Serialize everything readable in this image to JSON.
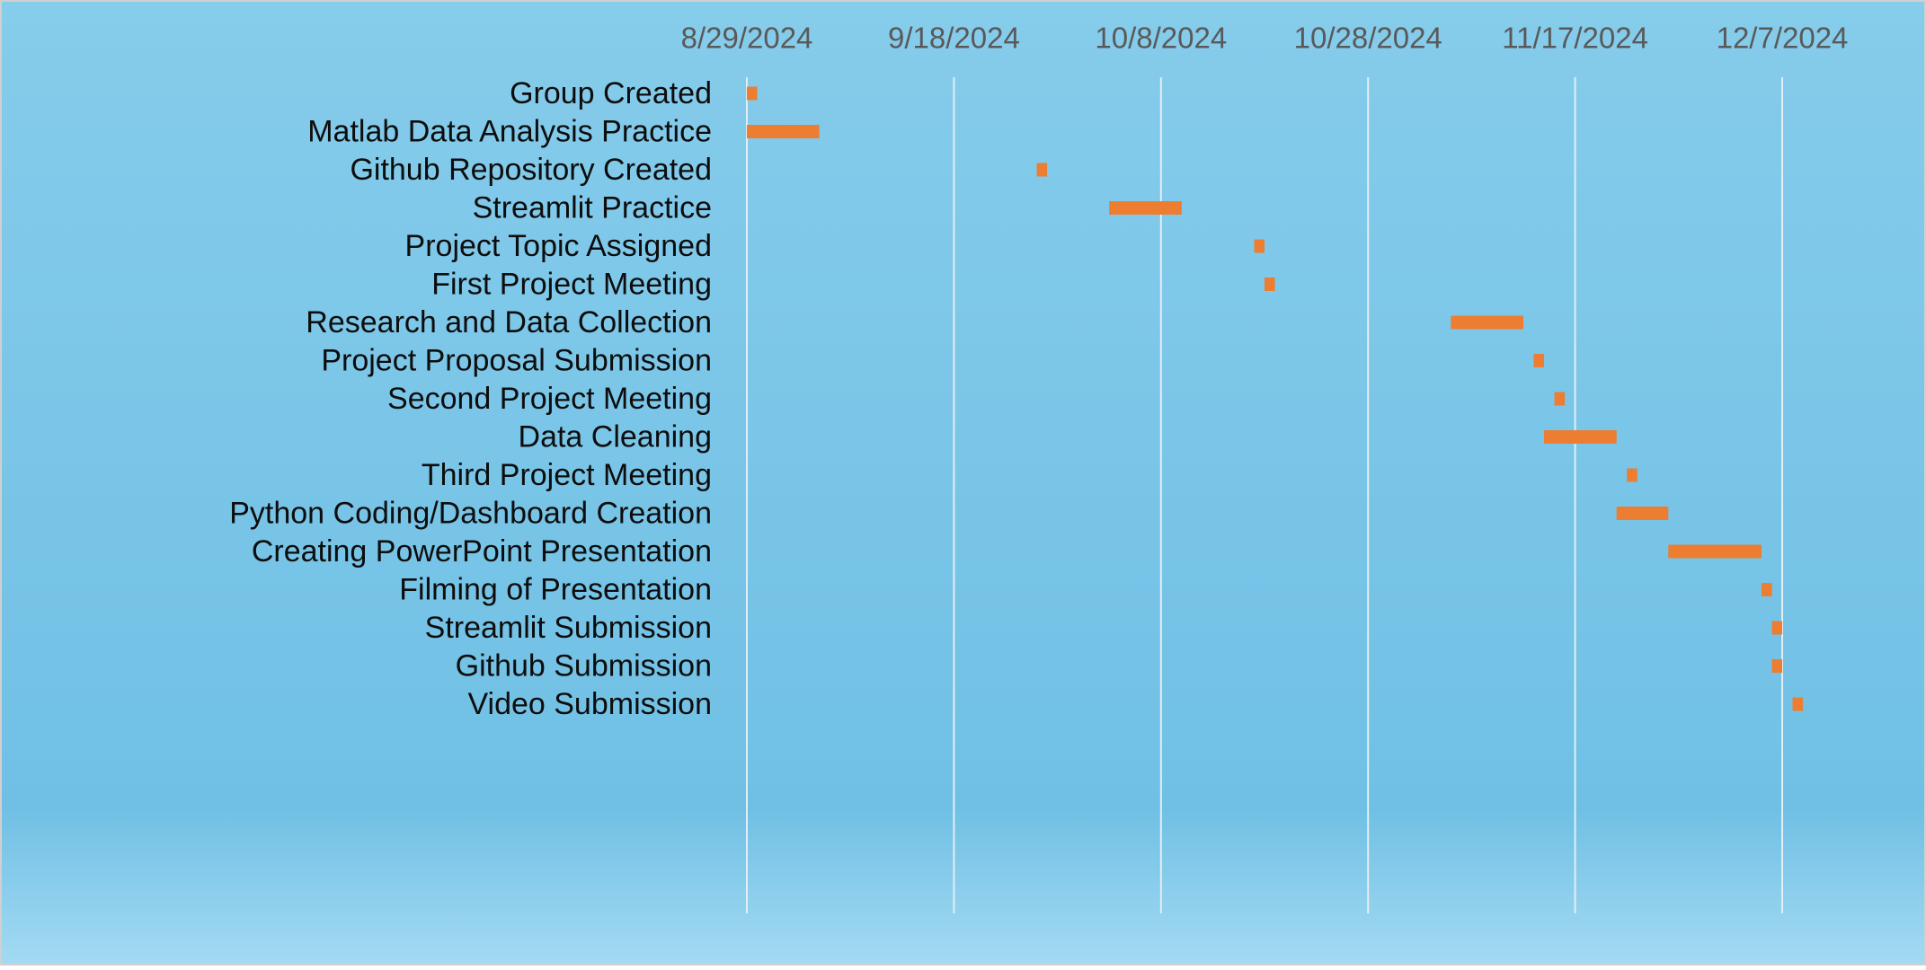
{
  "chart_data": {
    "type": "gantt",
    "title": "",
    "xlabel": "",
    "ylabel": "",
    "x_axis": {
      "type": "date",
      "position": "top",
      "min": "2024-08-29",
      "max": "2024-12-07",
      "tick_interval_days": 20,
      "tick_labels": [
        "8/29/2024",
        "9/18/2024",
        "10/8/2024",
        "10/28/2024",
        "11/17/2024",
        "12/7/2024"
      ]
    },
    "grid": true,
    "legend": "none",
    "colors": {
      "bar": "#ED7D31",
      "background_top": "#86CCEB",
      "background_mid": "#70C0E5",
      "background_bottom": "#A4DAF2",
      "gridline": "#E2EEF3",
      "tick_label": "#595959",
      "task_label": "#0D0D0D",
      "border": "#D0D0D0"
    },
    "tasks": [
      {
        "label": "Group Created",
        "start": "2024-08-29",
        "end": "2024-08-30"
      },
      {
        "label": "Matlab Data Analysis Practice",
        "start": "2024-08-29",
        "end": "2024-09-05"
      },
      {
        "label": "Github Repository Created",
        "start": "2024-09-26",
        "end": "2024-09-27"
      },
      {
        "label": "Streamlit Practice",
        "start": "2024-10-03",
        "end": "2024-10-10"
      },
      {
        "label": "Project Topic Assigned",
        "start": "2024-10-17",
        "end": "2024-10-18"
      },
      {
        "label": "First Project Meeting",
        "start": "2024-10-18",
        "end": "2024-10-19"
      },
      {
        "label": "Research and Data Collection",
        "start": "2024-11-05",
        "end": "2024-11-12"
      },
      {
        "label": "Project Proposal Submission",
        "start": "2024-11-13",
        "end": "2024-11-14"
      },
      {
        "label": "Second Project Meeting",
        "start": "2024-11-15",
        "end": "2024-11-16"
      },
      {
        "label": "Data Cleaning",
        "start": "2024-11-14",
        "end": "2024-11-21"
      },
      {
        "label": "Third Project Meeting",
        "start": "2024-11-22",
        "end": "2024-11-23"
      },
      {
        "label": "Python Coding/Dashboard Creation",
        "start": "2024-11-21",
        "end": "2024-11-26"
      },
      {
        "label": "Creating PowerPoint Presentation ",
        "start": "2024-11-26",
        "end": "2024-12-05"
      },
      {
        "label": "Filming of Presentation",
        "start": "2024-12-05",
        "end": "2024-12-06"
      },
      {
        "label": "Streamlit Submission",
        "start": "2024-12-06",
        "end": "2024-12-07"
      },
      {
        "label": "Github Submission",
        "start": "2024-12-06",
        "end": "2024-12-07"
      },
      {
        "label": "Video Submission",
        "start": "2024-12-08",
        "end": "2024-12-09"
      }
    ]
  }
}
